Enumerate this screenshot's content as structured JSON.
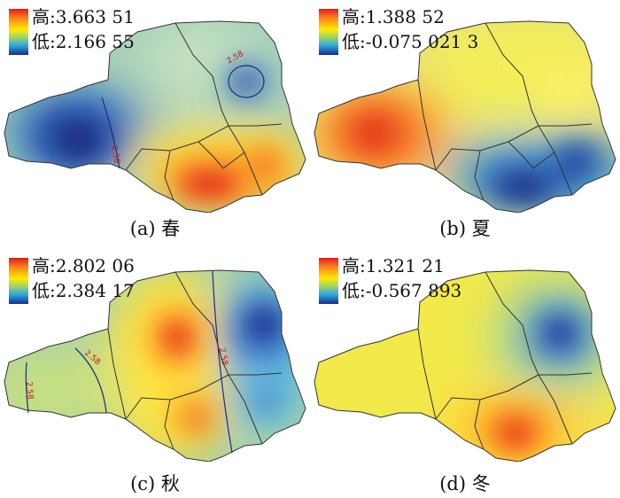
{
  "panels": [
    {
      "id": "a",
      "caption": "(a) 春",
      "legend": {
        "high_label": "高:3.663 51",
        "low_label": "低:2.166 55"
      },
      "contour_labels": [
        "2.58",
        "2.58"
      ]
    },
    {
      "id": "b",
      "caption": "(b) 夏",
      "legend": {
        "high_label": "高:1.388 52",
        "low_label": "低:-0.075 021 3"
      },
      "contour_labels": []
    },
    {
      "id": "c",
      "caption": "(c) 秋",
      "legend": {
        "high_label": "高:2.802 06",
        "low_label": "低:2.384 17"
      },
      "contour_labels": [
        "2.58",
        "2.58",
        "2.58"
      ]
    },
    {
      "id": "d",
      "caption": "(d) 冬",
      "legend": {
        "high_label": "高:1.321 21",
        "low_label": "低:-0.567 893"
      },
      "contour_labels": []
    }
  ],
  "colors": {
    "high": "#e31a1c",
    "orange": "#ff8c1a",
    "yellow": "#ffea00",
    "green": "#9ed36a",
    "cyan": "#2aa8e0",
    "low": "#1a2a8a",
    "boundary": "#333333",
    "contour": "#1a2a8a",
    "contour_label": "#d01010"
  }
}
